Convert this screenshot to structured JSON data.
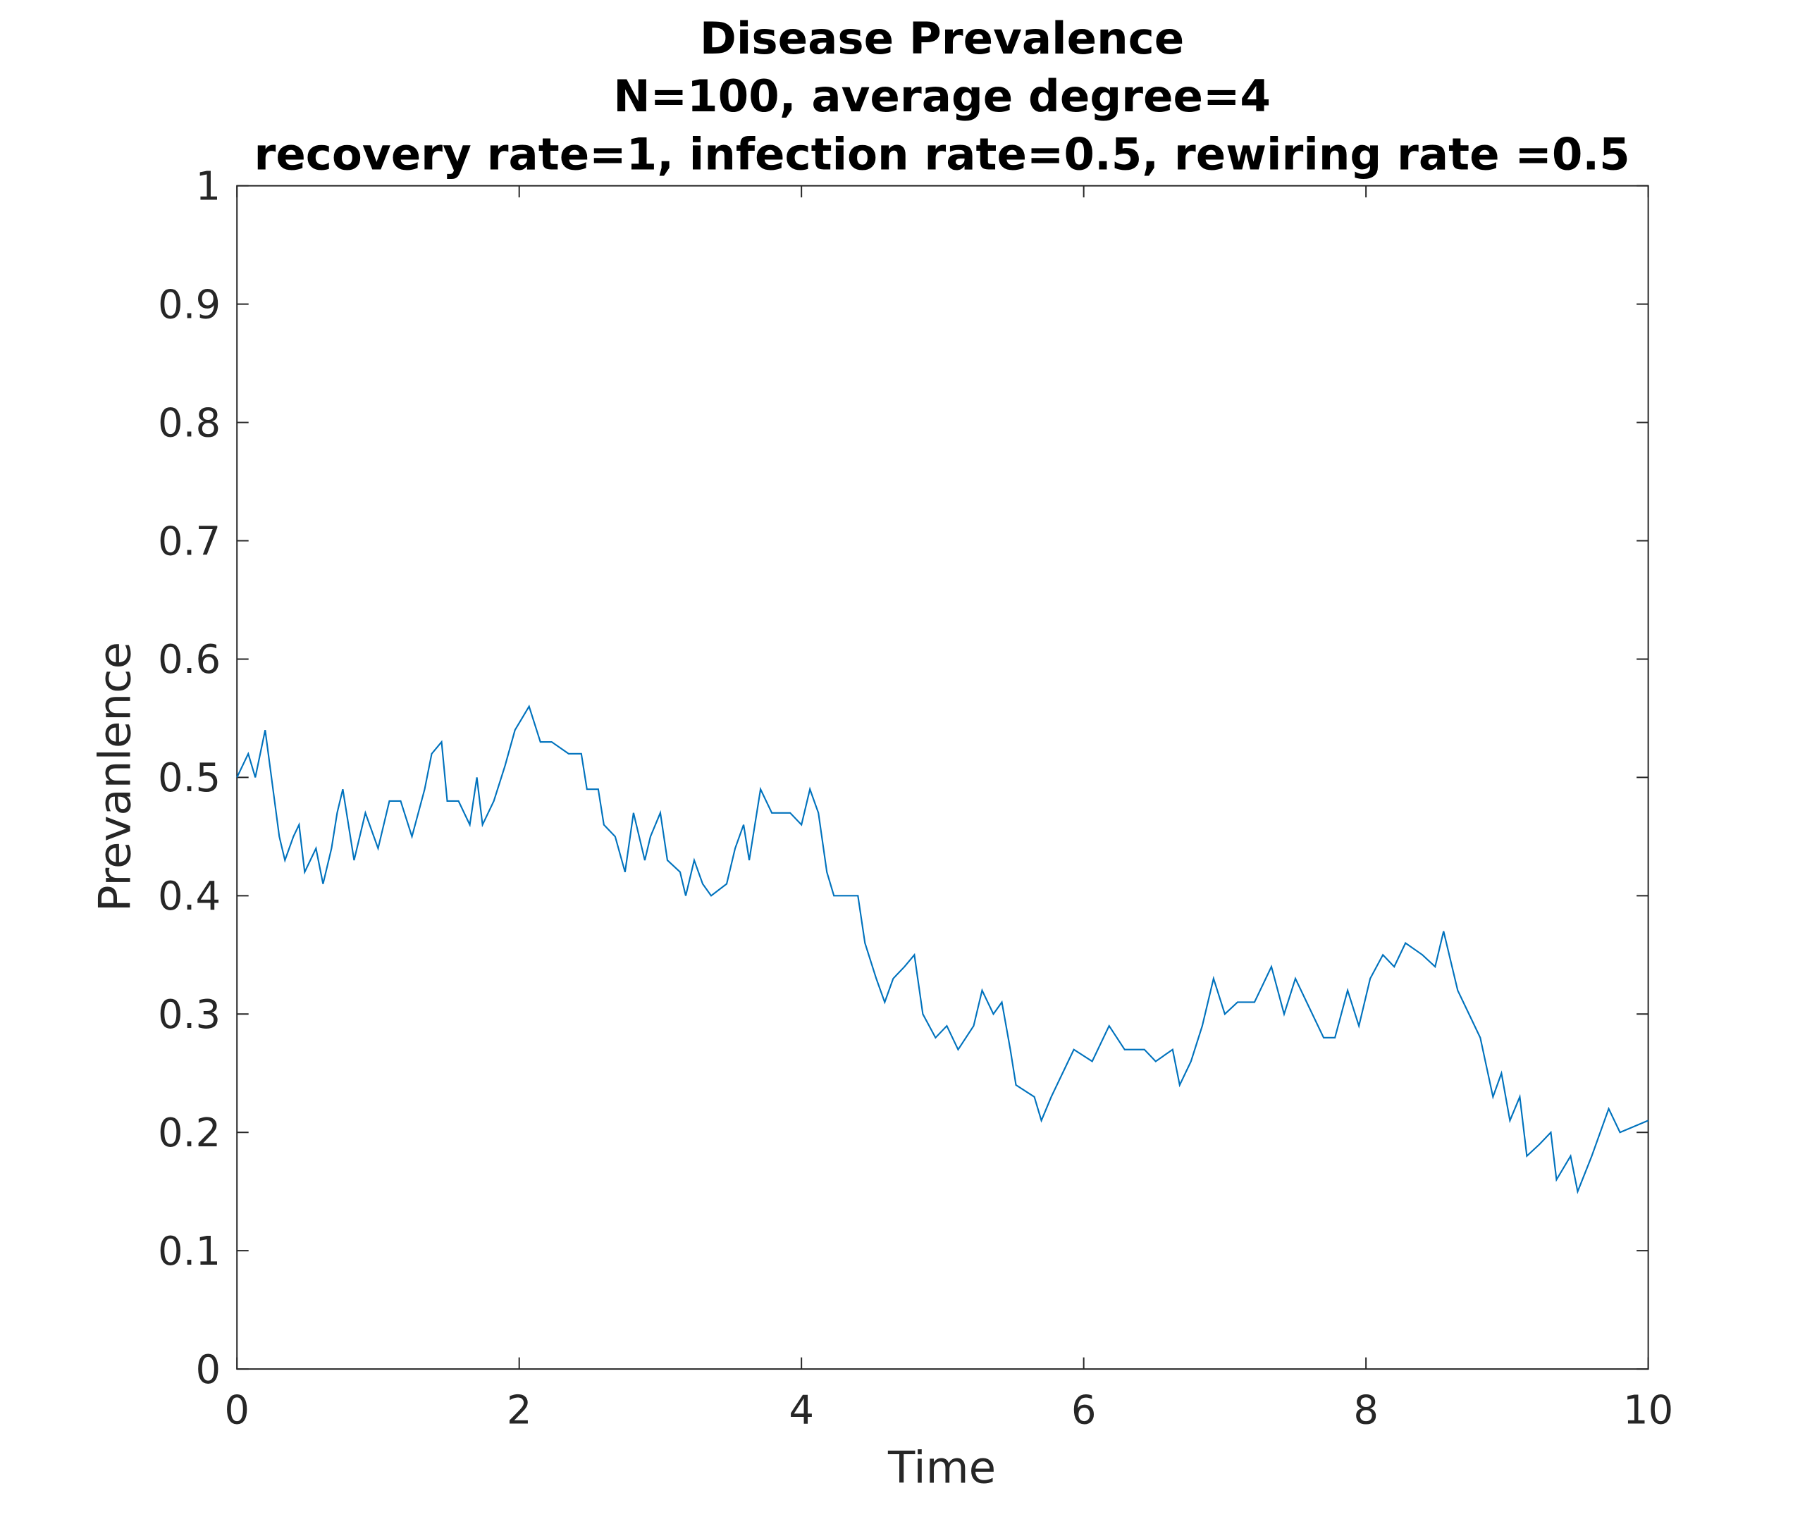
{
  "chart_data": {
    "type": "line",
    "title": "Disease Prevalence",
    "subtitle": [
      "N=100, average degree=4",
      "recovery rate=1, infection rate=0.5, rewiring rate =0.5"
    ],
    "x_label": "Time",
    "y_label": "Prevanlence",
    "xlim": [
      0,
      10
    ],
    "ylim": [
      0,
      1
    ],
    "xticks": [
      0,
      2,
      4,
      6,
      8,
      10
    ],
    "yticks": [
      0,
      0.1,
      0.2,
      0.3,
      0.4,
      0.5,
      0.6,
      0.7,
      0.8,
      0.9,
      1
    ],
    "color": "#0072bd",
    "x": [
      0,
      0.08,
      0.13,
      0.2,
      0.3,
      0.34,
      0.4,
      0.44,
      0.48,
      0.56,
      0.61,
      0.67,
      0.71,
      0.75,
      0.79,
      0.83,
      0.91,
      1.0,
      1.08,
      1.16,
      1.24,
      1.33,
      1.38,
      1.45,
      1.49,
      1.57,
      1.65,
      1.7,
      1.74,
      1.82,
      1.9,
      1.97,
      2.07,
      2.15,
      2.23,
      2.35,
      2.44,
      2.48,
      2.56,
      2.6,
      2.68,
      2.75,
      2.81,
      2.89,
      2.93,
      3.0,
      3.05,
      3.14,
      3.18,
      3.24,
      3.3,
      3.36,
      3.47,
      3.53,
      3.59,
      3.63,
      3.71,
      3.79,
      3.92,
      4.0,
      4.06,
      4.12,
      4.18,
      4.23,
      4.4,
      4.45,
      4.53,
      4.59,
      4.65,
      4.73,
      4.8,
      4.86,
      4.95,
      5.03,
      5.11,
      5.22,
      5.28,
      5.36,
      5.42,
      5.48,
      5.52,
      5.65,
      5.7,
      5.77,
      5.85,
      5.93,
      6.06,
      6.18,
      6.29,
      6.43,
      6.51,
      6.63,
      6.68,
      6.76,
      6.84,
      6.92,
      7.0,
      7.09,
      7.21,
      7.29,
      7.33,
      7.42,
      7.5,
      7.58,
      7.7,
      7.78,
      7.87,
      7.95,
      8.03,
      8.12,
      8.2,
      8.28,
      8.4,
      8.49,
      8.55,
      8.65,
      8.73,
      8.81,
      8.9,
      8.96,
      9.02,
      9.09,
      9.14,
      9.23,
      9.31,
      9.35,
      9.45,
      9.5,
      9.6,
      9.72,
      9.8,
      10
    ],
    "values": [
      0.5,
      0.52,
      0.5,
      0.54,
      0.45,
      0.43,
      0.45,
      0.46,
      0.42,
      0.44,
      0.41,
      0.44,
      0.47,
      0.49,
      0.46,
      0.43,
      0.47,
      0.44,
      0.48,
      0.48,
      0.45,
      0.49,
      0.52,
      0.53,
      0.48,
      0.48,
      0.46,
      0.5,
      0.46,
      0.48,
      0.51,
      0.54,
      0.56,
      0.53,
      0.53,
      0.52,
      0.52,
      0.49,
      0.49,
      0.46,
      0.45,
      0.42,
      0.47,
      0.43,
      0.45,
      0.47,
      0.43,
      0.42,
      0.4,
      0.43,
      0.41,
      0.4,
      0.41,
      0.44,
      0.46,
      0.43,
      0.49,
      0.47,
      0.47,
      0.46,
      0.49,
      0.47,
      0.42,
      0.4,
      0.4,
      0.36,
      0.33,
      0.31,
      0.33,
      0.34,
      0.35,
      0.3,
      0.28,
      0.29,
      0.27,
      0.29,
      0.32,
      0.3,
      0.31,
      0.27,
      0.24,
      0.23,
      0.21,
      0.23,
      0.25,
      0.27,
      0.26,
      0.29,
      0.27,
      0.27,
      0.26,
      0.27,
      0.24,
      0.26,
      0.29,
      0.33,
      0.3,
      0.31,
      0.31,
      0.33,
      0.34,
      0.3,
      0.33,
      0.31,
      0.28,
      0.28,
      0.32,
      0.29,
      0.33,
      0.35,
      0.34,
      0.36,
      0.35,
      0.34,
      0.37,
      0.32,
      0.3,
      0.28,
      0.23,
      0.25,
      0.21,
      0.23,
      0.18,
      0.19,
      0.2,
      0.16,
      0.18,
      0.15,
      0.18,
      0.22,
      0.2,
      0.21
    ]
  }
}
